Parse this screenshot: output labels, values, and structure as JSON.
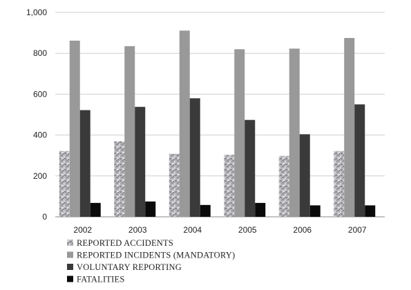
{
  "chart_data": {
    "type": "bar",
    "categories": [
      "2002",
      "2003",
      "2004",
      "2005",
      "2006",
      "2007"
    ],
    "series": [
      {
        "name": "REPORTED ACCIDENTS",
        "values": [
          322,
          370,
          308,
          303,
          298,
          322
        ],
        "color": "#b4b4b8",
        "pattern": "granite"
      },
      {
        "name": "REPORTED INCIDENTS (MANDATORY)",
        "values": [
          862,
          835,
          911,
          820,
          823,
          875
        ],
        "color": "#999999"
      },
      {
        "name": "VOLUNTARY REPORTING",
        "values": [
          522,
          538,
          580,
          474,
          404,
          550
        ],
        "color": "#3a3a3a"
      },
      {
        "name": "FATALITIES",
        "values": [
          68,
          75,
          58,
          68,
          56,
          56
        ],
        "color": "#0a0a0a"
      }
    ],
    "y_ticks": [
      "0",
      "200",
      "400",
      "600",
      "800",
      "1,000"
    ],
    "ylim": [
      0,
      1000
    ],
    "grid": true,
    "legend_position": "bottom-left"
  }
}
